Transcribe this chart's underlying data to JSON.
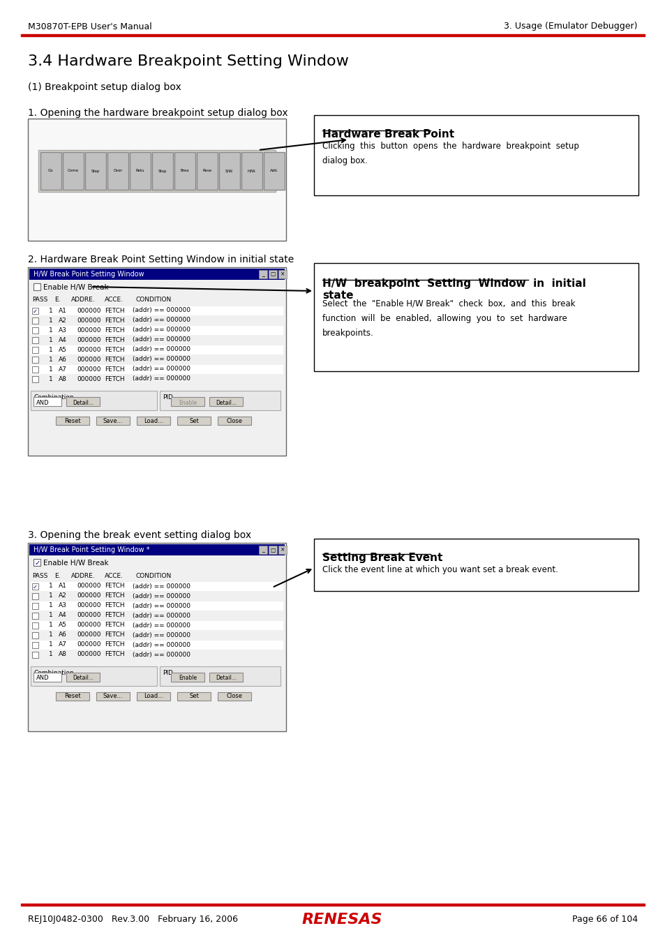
{
  "page_header_left": "M30870T-EPB User's Manual",
  "page_header_right": "3. Usage (Emulator Debugger)",
  "page_footer_left": "REJ10J0482-0300   Rev.3.00   February 16, 2006",
  "page_footer_right": "Page 66 of 104",
  "section_title": "3.4 Hardware Breakpoint Setting Window",
  "subsection": "(1) Breakpoint setup dialog box",
  "step1_label": "1. Opening the hardware breakpoint setup dialog box",
  "step1_callout_title": "Hardware Break Point",
  "step1_callout_text": "Clicking  this  button  opens  the  hardware  breakpoint  setup\ndialog box.",
  "step2_label": "2. Hardware Break Point Setting Window in initial state",
  "step2_callout_title": "H/W  breakpoint  Setting  Window  in  initial\nstate",
  "step2_callout_text": "Select  the  \"Enable H/W Break\"  check  box,  and  this  break\nfunction  will  be  enabled,  allowing  you  to  set  hardware\nbreakpoints.",
  "step3_label": "3. Opening the break event setting dialog box",
  "step3_callout_title": "Setting Break Event",
  "step3_callout_text": "Click the event line at which you want set a break event.",
  "bg_color": "#ffffff",
  "header_line_color": "#cc0000",
  "footer_line_color": "#cc0000",
  "renesas_color": "#cc0000",
  "box_bg": "#f0f0f0",
  "win_title_color": "#000080",
  "callout_border": "#000000"
}
